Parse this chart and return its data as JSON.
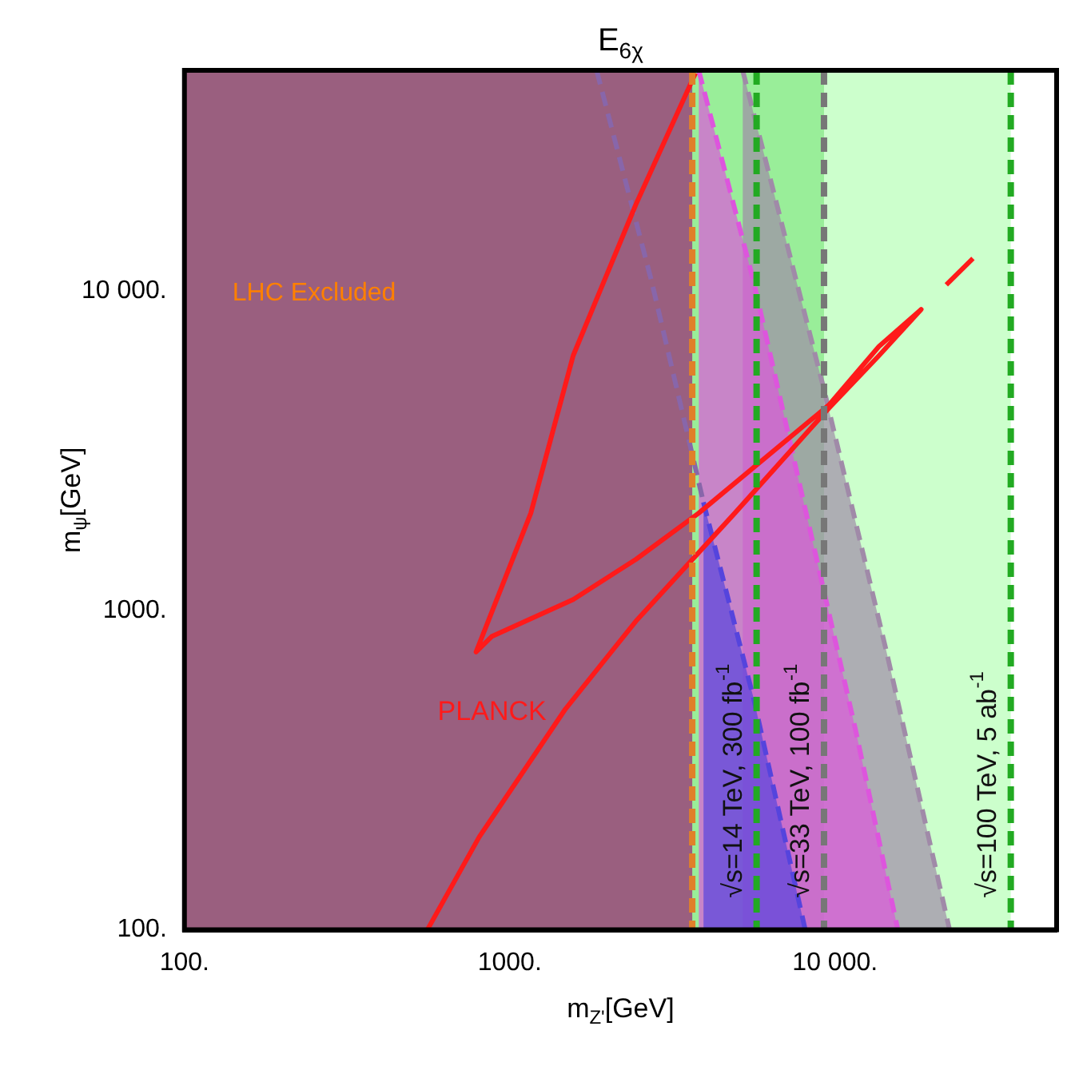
{
  "chart_data": {
    "type": "line",
    "title": "E$_{6χ}$",
    "xlabel": "m$_{Z'}$[GeV]",
    "ylabel": "m$_{ψ}$[GeV]",
    "log": "xy",
    "xlim": [
      100,
      48000
    ],
    "ylim": [
      100,
      49000
    ],
    "xticks": [
      {
        "value": 100,
        "label": "100."
      },
      {
        "value": 1000,
        "label": "1000."
      },
      {
        "value": 10000,
        "label": "10 000."
      }
    ],
    "yticks": [
      {
        "value": 100,
        "label": "100."
      },
      {
        "value": 1000,
        "label": "1000."
      },
      {
        "value": 10000,
        "label": "10 000."
      }
    ],
    "bands": [
      {
        "axis": "x",
        "from": 100,
        "to": 34700,
        "color": "#ccffcc"
      },
      {
        "axis": "x",
        "from": 100,
        "to": 9250,
        "color": "#99ee99"
      },
      {
        "axis": "x",
        "from": 100,
        "to": 3640,
        "color": "#9a5f7f",
        "label": "LHC Excluded"
      }
    ],
    "series": [
      {
        "type": "area",
        "color": "#a08aa8",
        "line_style": "dashed",
        "x": [
          5200,
          9250,
          14400,
          22500
        ],
        "values": [
          49000,
          4910,
          741,
          100
        ]
      },
      {
        "type": "area",
        "color": "#dd55dd",
        "line_style": "dashed",
        "x": [
          3810,
          5620,
          8010,
          11550,
          15600
        ],
        "values": [
          49000,
          10700,
          2180,
          425,
          100
        ]
      },
      {
        "type": "area",
        "color": "#5544dd",
        "line_style": "dashed",
        "x": [
          3940,
          5620,
          8100
        ],
        "values": [
          2180,
          530,
          100
        ]
      },
      {
        "type": "line",
        "color": "#8866aa",
        "line_style": "dashed",
        "x": [
          1850,
          2730,
          3940
        ],
        "values": [
          49000,
          10700,
          2180
        ]
      },
      {
        "type": "line",
        "name": "PLANCK",
        "color": "#ff1a1a",
        "line_style": "solid",
        "x": [
          558,
          805,
          1483,
          2443,
          4920,
          9570,
          13650,
          18400,
          13650,
          9570,
          3810,
          2443,
          1567,
          880,
          788,
          1161,
          1567,
          2443,
          3725
        ],
        "values": [
          100,
          195,
          491,
          925,
          2015,
          4290,
          6270,
          8750,
          6700,
          4390,
          2015,
          1444,
          1081,
          828,
          741,
          2015,
          6270,
          18650,
          48000
        ]
      },
      {
        "type": "line",
        "color": "#ff1a1a",
        "line_style": "solid",
        "x": [
          21980,
          26550
        ],
        "values": [
          10450,
          12630
        ]
      }
    ],
    "annotations": [
      "√s=14 TeV, 300 fb$^{-1}$",
      "√s=33 TeV, 100 fb$^{-1}$",
      "√s=100 TeV, 5 ab$^{-1}$"
    ],
    "ref_lines": [
      {
        "axis": "x",
        "value": 3640,
        "color": "#e0802a",
        "line_style": "dashed"
      },
      {
        "axis": "x",
        "value": 5740,
        "color": "#22aa22",
        "line_style": "dashed"
      },
      {
        "axis": "x",
        "value": 9250,
        "color": "#777777",
        "line_style": "dashed"
      },
      {
        "axis": "x",
        "value": 34700,
        "color": "#22aa22",
        "line_style": "dashed"
      }
    ]
  }
}
